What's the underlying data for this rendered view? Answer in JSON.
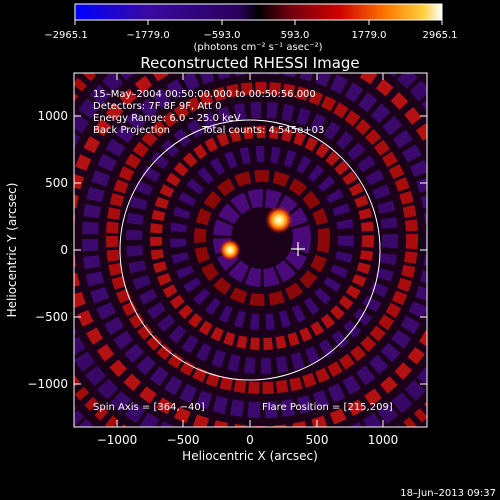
{
  "colorbar": {
    "tick_labels": [
      "−2965.1",
      "−1779.0",
      "−593.0",
      "593.0",
      "1779.0",
      "2965.1"
    ],
    "units_label": "(photons cm⁻² s⁻¹ asec⁻²)"
  },
  "image": {
    "title": "Reconstructed RHESSI Image",
    "info_lines": [
      "15–May–2004 00:50:00.000 to 00:50:56.000",
      "Detectors: 7F 8F 9F, Att 0",
      "Energy Range: 6.0 – 25.0 keV"
    ],
    "method": "Back Projection",
    "total_counts": "Total counts: 4.545e+03",
    "spin_axis": "Spin Axis = [364,−40]",
    "flare_position": "Flare Position = [215,209]"
  },
  "axes": {
    "xlabel": "Heliocentric X (arcsec)",
    "ylabel": "Heliocentric Y (arcsec)",
    "x_ticks": [
      "−1000",
      "−500",
      "0",
      "500",
      "1000"
    ],
    "y_ticks": [
      "1000",
      "500",
      "0",
      "−500",
      "−1000"
    ],
    "xlim": [
      -1280,
      1280
    ],
    "ylim": [
      -1280,
      1280
    ]
  },
  "footer": {
    "timestamp": "18–Jun–2013 09:37"
  },
  "colors": {
    "background": "#000000",
    "axes": "#ffffff"
  }
}
